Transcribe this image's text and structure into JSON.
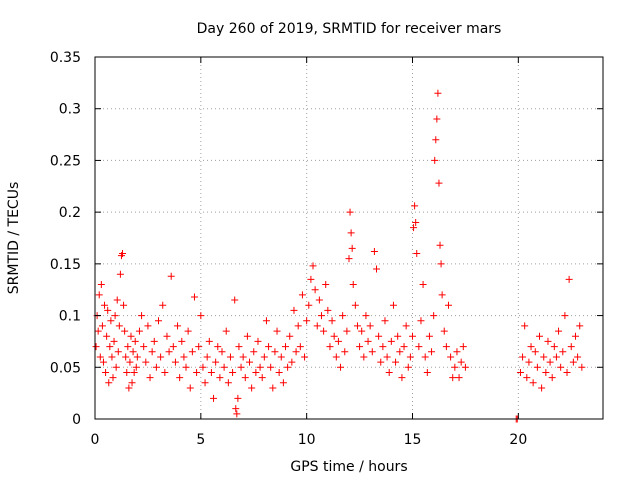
{
  "chart_data": {
    "type": "scatter",
    "title": "Day 260 of 2019, SRMTID for receiver mars",
    "xlabel": "GPS time / hours",
    "ylabel": "SRMTID / TECUs",
    "xlim": [
      0,
      24
    ],
    "ylim": [
      0,
      0.35
    ],
    "xticks": [
      0,
      5,
      10,
      15,
      20
    ],
    "xtick_labels": [
      "0",
      "5",
      "10",
      "15",
      "20"
    ],
    "yticks": [
      0,
      0.05,
      0.1,
      0.15,
      0.2,
      0.25,
      0.3,
      0.35
    ],
    "ytick_labels": [
      "0",
      "0.05",
      "0.1",
      "0.15",
      "0.2",
      "0.25",
      "0.3",
      "0.35"
    ],
    "grid": true,
    "marker": "+",
    "color": "#ff0000",
    "series": [
      {
        "name": "SRMTID",
        "points": [
          [
            0.05,
            0.07
          ],
          [
            0.1,
            0.1
          ],
          [
            0.15,
            0.085
          ],
          [
            0.2,
            0.12
          ],
          [
            0.25,
            0.06
          ],
          [
            0.3,
            0.13
          ],
          [
            0.35,
            0.09
          ],
          [
            0.4,
            0.055
          ],
          [
            0.45,
            0.11
          ],
          [
            0.5,
            0.045
          ],
          [
            0.55,
            0.08
          ],
          [
            0.6,
            0.105
          ],
          [
            0.65,
            0.035
          ],
          [
            0.7,
            0.07
          ],
          [
            0.75,
            0.095
          ],
          [
            0.8,
            0.06
          ],
          [
            0.85,
            0.04
          ],
          [
            0.9,
            0.075
          ],
          [
            0.95,
            0.1
          ],
          [
            1.0,
            0.05
          ],
          [
            1.05,
            0.115
          ],
          [
            1.1,
            0.065
          ],
          [
            1.15,
            0.09
          ],
          [
            1.2,
            0.14
          ],
          [
            1.25,
            0.158
          ],
          [
            1.3,
            0.16
          ],
          [
            1.35,
            0.11
          ],
          [
            1.4,
            0.085
          ],
          [
            1.45,
            0.06
          ],
          [
            1.5,
            0.045
          ],
          [
            1.55,
            0.07
          ],
          [
            1.6,
            0.03
          ],
          [
            1.65,
            0.055
          ],
          [
            1.7,
            0.08
          ],
          [
            1.75,
            0.035
          ],
          [
            1.8,
            0.065
          ],
          [
            1.85,
            0.045
          ],
          [
            1.9,
            0.075
          ],
          [
            1.95,
            0.05
          ],
          [
            2.0,
            0.06
          ],
          [
            2.1,
            0.085
          ],
          [
            2.2,
            0.1
          ],
          [
            2.3,
            0.07
          ],
          [
            2.4,
            0.055
          ],
          [
            2.5,
            0.09
          ],
          [
            2.6,
            0.04
          ],
          [
            2.7,
            0.065
          ],
          [
            2.8,
            0.075
          ],
          [
            2.9,
            0.05
          ],
          [
            3.0,
            0.095
          ],
          [
            3.1,
            0.06
          ],
          [
            3.2,
            0.11
          ],
          [
            3.3,
            0.045
          ],
          [
            3.4,
            0.08
          ],
          [
            3.5,
            0.065
          ],
          [
            3.6,
            0.138
          ],
          [
            3.7,
            0.07
          ],
          [
            3.8,
            0.055
          ],
          [
            3.9,
            0.09
          ],
          [
            4.0,
            0.04
          ],
          [
            4.1,
            0.075
          ],
          [
            4.2,
            0.06
          ],
          [
            4.3,
            0.05
          ],
          [
            4.4,
            0.085
          ],
          [
            4.5,
            0.03
          ],
          [
            4.6,
            0.065
          ],
          [
            4.7,
            0.118
          ],
          [
            4.8,
            0.045
          ],
          [
            4.9,
            0.07
          ],
          [
            5.0,
            0.1
          ],
          [
            5.1,
            0.05
          ],
          [
            5.2,
            0.035
          ],
          [
            5.3,
            0.06
          ],
          [
            5.4,
            0.075
          ],
          [
            5.5,
            0.045
          ],
          [
            5.6,
            0.02
          ],
          [
            5.7,
            0.055
          ],
          [
            5.8,
            0.07
          ],
          [
            5.9,
            0.04
          ],
          [
            6.0,
            0.065
          ],
          [
            6.1,
            0.05
          ],
          [
            6.2,
            0.085
          ],
          [
            6.3,
            0.035
          ],
          [
            6.4,
            0.06
          ],
          [
            6.5,
            0.045
          ],
          [
            6.6,
            0.115
          ],
          [
            6.65,
            0.01
          ],
          [
            6.7,
            0.005
          ],
          [
            6.75,
            0.02
          ],
          [
            6.8,
            0.07
          ],
          [
            6.9,
            0.05
          ],
          [
            7.0,
            0.06
          ],
          [
            7.1,
            0.04
          ],
          [
            7.2,
            0.08
          ],
          [
            7.3,
            0.055
          ],
          [
            7.4,
            0.03
          ],
          [
            7.5,
            0.065
          ],
          [
            7.6,
            0.045
          ],
          [
            7.7,
            0.075
          ],
          [
            7.8,
            0.05
          ],
          [
            7.9,
            0.04
          ],
          [
            8.0,
            0.06
          ],
          [
            8.1,
            0.095
          ],
          [
            8.2,
            0.07
          ],
          [
            8.3,
            0.05
          ],
          [
            8.4,
            0.03
          ],
          [
            8.5,
            0.065
          ],
          [
            8.6,
            0.085
          ],
          [
            8.7,
            0.045
          ],
          [
            8.8,
            0.06
          ],
          [
            8.9,
            0.035
          ],
          [
            9.0,
            0.07
          ],
          [
            9.1,
            0.05
          ],
          [
            9.2,
            0.08
          ],
          [
            9.3,
            0.055
          ],
          [
            9.4,
            0.105
          ],
          [
            9.5,
            0.065
          ],
          [
            9.6,
            0.09
          ],
          [
            9.7,
            0.07
          ],
          [
            9.8,
            0.12
          ],
          [
            9.9,
            0.06
          ],
          [
            10.0,
            0.095
          ],
          [
            10.1,
            0.11
          ],
          [
            10.2,
            0.135
          ],
          [
            10.3,
            0.148
          ],
          [
            10.4,
            0.125
          ],
          [
            10.5,
            0.09
          ],
          [
            10.6,
            0.115
          ],
          [
            10.7,
            0.1
          ],
          [
            10.8,
            0.085
          ],
          [
            10.9,
            0.13
          ],
          [
            11.0,
            0.105
          ],
          [
            11.1,
            0.07
          ],
          [
            11.2,
            0.095
          ],
          [
            11.3,
            0.08
          ],
          [
            11.4,
            0.06
          ],
          [
            11.5,
            0.075
          ],
          [
            11.6,
            0.05
          ],
          [
            11.7,
            0.1
          ],
          [
            11.8,
            0.065
          ],
          [
            11.9,
            0.085
          ],
          [
            12.0,
            0.155
          ],
          [
            12.05,
            0.2
          ],
          [
            12.1,
            0.18
          ],
          [
            12.15,
            0.165
          ],
          [
            12.2,
            0.13
          ],
          [
            12.3,
            0.11
          ],
          [
            12.4,
            0.09
          ],
          [
            12.5,
            0.07
          ],
          [
            12.6,
            0.085
          ],
          [
            12.7,
            0.06
          ],
          [
            12.8,
            0.1
          ],
          [
            12.9,
            0.075
          ],
          [
            13.0,
            0.09
          ],
          [
            13.1,
            0.065
          ],
          [
            13.2,
            0.162
          ],
          [
            13.3,
            0.145
          ],
          [
            13.4,
            0.08
          ],
          [
            13.5,
            0.055
          ],
          [
            13.6,
            0.07
          ],
          [
            13.7,
            0.095
          ],
          [
            13.8,
            0.06
          ],
          [
            13.9,
            0.045
          ],
          [
            14.0,
            0.075
          ],
          [
            14.1,
            0.11
          ],
          [
            14.2,
            0.055
          ],
          [
            14.3,
            0.08
          ],
          [
            14.4,
            0.065
          ],
          [
            14.5,
            0.04
          ],
          [
            14.6,
            0.07
          ],
          [
            14.7,
            0.09
          ],
          [
            14.8,
            0.05
          ],
          [
            14.9,
            0.06
          ],
          [
            15.0,
            0.08
          ],
          [
            15.05,
            0.185
          ],
          [
            15.1,
            0.206
          ],
          [
            15.15,
            0.19
          ],
          [
            15.2,
            0.16
          ],
          [
            15.3,
            0.07
          ],
          [
            15.4,
            0.095
          ],
          [
            15.5,
            0.13
          ],
          [
            15.6,
            0.06
          ],
          [
            15.7,
            0.045
          ],
          [
            15.8,
            0.08
          ],
          [
            15.9,
            0.065
          ],
          [
            16.0,
            0.1
          ],
          [
            16.05,
            0.25
          ],
          [
            16.1,
            0.27
          ],
          [
            16.15,
            0.29
          ],
          [
            16.2,
            0.315
          ],
          [
            16.25,
            0.228
          ],
          [
            16.3,
            0.168
          ],
          [
            16.35,
            0.15
          ],
          [
            16.4,
            0.12
          ],
          [
            16.5,
            0.085
          ],
          [
            16.6,
            0.07
          ],
          [
            16.7,
            0.11
          ],
          [
            16.8,
            0.06
          ],
          [
            16.9,
            0.04
          ],
          [
            17.0,
            0.05
          ],
          [
            17.1,
            0.065
          ],
          [
            17.2,
            0.04
          ],
          [
            17.3,
            0.055
          ],
          [
            17.4,
            0.07
          ],
          [
            17.5,
            0.05
          ],
          [
            19.9,
            0.0
          ],
          [
            19.95,
            0.0
          ],
          [
            20.1,
            0.045
          ],
          [
            20.2,
            0.06
          ],
          [
            20.3,
            0.09
          ],
          [
            20.4,
            0.04
          ],
          [
            20.5,
            0.055
          ],
          [
            20.6,
            0.07
          ],
          [
            20.7,
            0.035
          ],
          [
            20.8,
            0.065
          ],
          [
            20.9,
            0.05
          ],
          [
            21.0,
            0.08
          ],
          [
            21.1,
            0.03
          ],
          [
            21.2,
            0.06
          ],
          [
            21.3,
            0.045
          ],
          [
            21.4,
            0.075
          ],
          [
            21.5,
            0.055
          ],
          [
            21.6,
            0.04
          ],
          [
            21.7,
            0.07
          ],
          [
            21.8,
            0.06
          ],
          [
            21.9,
            0.085
          ],
          [
            22.0,
            0.05
          ],
          [
            22.1,
            0.065
          ],
          [
            22.2,
            0.1
          ],
          [
            22.3,
            0.045
          ],
          [
            22.4,
            0.135
          ],
          [
            22.5,
            0.07
          ],
          [
            22.6,
            0.055
          ],
          [
            22.7,
            0.08
          ],
          [
            22.8,
            0.06
          ],
          [
            22.9,
            0.09
          ],
          [
            23.0,
            0.05
          ]
        ]
      }
    ]
  }
}
